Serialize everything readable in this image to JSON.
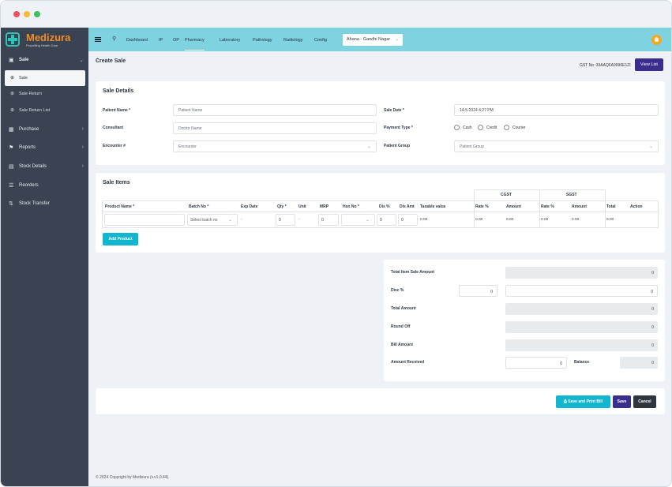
{
  "brand": {
    "name": "Medizura",
    "tagline": "Propelling Health Care"
  },
  "sidebar": {
    "sale_label": "Sale",
    "sub_items": [
      "Sale",
      "Sale Return",
      "Sale Return List"
    ],
    "items": [
      {
        "label": "Purchase",
        "icon": "briefcase-icon"
      },
      {
        "label": "Reports",
        "icon": "flag-icon"
      },
      {
        "label": "Stock Details",
        "icon": "bar-chart-icon"
      },
      {
        "label": "Reorders",
        "icon": "list-icon"
      },
      {
        "label": "Stock Transfer",
        "icon": "transfer-icon"
      }
    ]
  },
  "topbar": {
    "menu": [
      "Dashboard",
      "IP",
      "OP",
      "Pharmacy",
      "Laboratory",
      "Pathology",
      "Radiology",
      "Config"
    ],
    "active_menu": "Pharmacy",
    "location": "Ahana - Gandhi Nagar"
  },
  "header": {
    "title": "Create Sale",
    "gst": "GST No :33AAQFA9996E1ZI",
    "view_list": "View List"
  },
  "sale_details": {
    "title": "Sale Details",
    "patient_name_label": "Patient Name *",
    "patient_name_placeholder": "Patient Name",
    "consultant_label": "Consultant",
    "consultant_placeholder": "Doctor Name",
    "encounter_label": "Encounter #",
    "encounter_value": "Encounter",
    "sale_date_label": "Sale Date *",
    "sale_date_value": "14-5-2024 4:27 PM",
    "payment_type_label": "Payment Type *",
    "payment_options": [
      "Cash",
      "Credit",
      "Courier"
    ],
    "patient_group_label": "Patient Group",
    "patient_group_value": "Patient Group"
  },
  "sale_items": {
    "title": "Sale Items",
    "group_headers": [
      "CGST",
      "SGST"
    ],
    "columns": [
      "Product Name *",
      "Batch No *",
      "Exp Date",
      "Qty *",
      "Unit",
      "MRP",
      "Hsn No *",
      "Dis %",
      "Dis Amt",
      "Taxable value",
      "Rate %",
      "Amount",
      "Rate %",
      "Amount",
      "Total",
      "Action"
    ],
    "row": {
      "product": "",
      "batch_placeholder": "Select batch no",
      "exp_date": "-",
      "qty": "0",
      "unit": "-",
      "mrp": "0",
      "hsn": "",
      "dis_pct": "0",
      "dis_amt": "0",
      "taxable": "0.00",
      "cgst_rate": "0.00",
      "cgst_amount": "0.00",
      "sgst_rate": "0.00",
      "sgst_amount": "0.00",
      "total": "0.00",
      "action": ""
    },
    "add_product": "Add Product"
  },
  "summary": {
    "total_item_sale_amount_label": "Total Item Sale Amount",
    "total_item_sale_amount": "0",
    "disc_label": "Disc %",
    "disc_pct": "0",
    "disc_amount": "0",
    "total_amount_label": "Total Amount",
    "total_amount": "0",
    "round_off_label": "Round Off",
    "round_off": "0",
    "bill_amount_label": "Bill Amount",
    "bill_amount": "0",
    "amount_received_label": "Amount Received",
    "amount_received": "0",
    "balance_label": "Balance",
    "balance": "0"
  },
  "actions": {
    "save_print": "Save and Print Bill",
    "save": "Save",
    "cancel": "Cancel"
  },
  "footer": "© 2024 Copyright by Medizura (v.v1.0.44).",
  "colors": {
    "accent": "#7fd3e1",
    "primary": "#3a2e8c",
    "teal": "#13b6cf",
    "sidebar": "#3a4352",
    "brand_orange": "#f28c28"
  }
}
